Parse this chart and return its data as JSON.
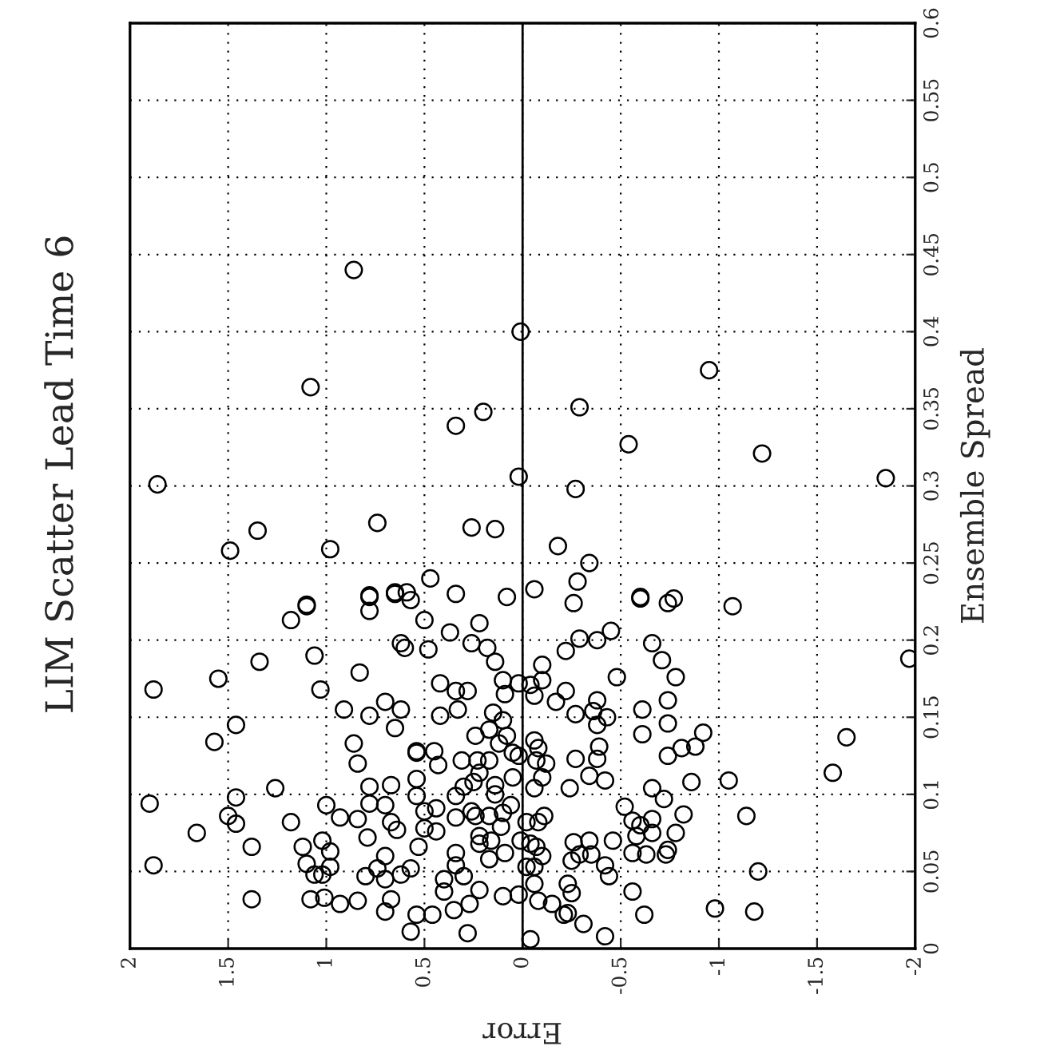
{
  "chart_data": {
    "type": "scatter",
    "title": "LIM Scatter Lead Time 6",
    "xlabel": "Error",
    "ylabel": "Ensemble Spread",
    "xlim": [
      2,
      -2
    ],
    "xticks": [
      2,
      1.5,
      1,
      0.5,
      0,
      -0.5,
      -1,
      -1.5,
      -2
    ],
    "ylim": [
      0,
      0.6
    ],
    "yticks": [
      0,
      0.05,
      0.1,
      0.15,
      0.2,
      0.25,
      0.3,
      0.35,
      0.4,
      0.45,
      0.5,
      0.55,
      0.6
    ],
    "grid": true,
    "marker": "circle",
    "ref_lines": [
      {
        "axis": "x",
        "value": 0,
        "color": "#000000",
        "line_style": "solid"
      }
    ],
    "series": [
      {
        "color": "#000000",
        "x": [
          0.86,
          0.01,
          1.08,
          -0.95,
          -0.29,
          0.2,
          0.34,
          -0.54,
          -1.22,
          1.86,
          0.02,
          -0.27,
          -1.85,
          1.35,
          0.74,
          0.26,
          0.14,
          1.49,
          0.98,
          -0.18,
          -0.34,
          0.47,
          -0.28,
          0.78,
          0.65,
          0.59,
          0.57,
          0.34,
          0.08,
          -0.06,
          -0.26,
          -0.6,
          -0.77,
          -1.07,
          1.1,
          -1.97,
          1.88,
          1.55,
          1.34,
          1.06,
          1.03,
          0.83,
          1.18,
          1.1,
          0.78,
          0.62,
          0.6,
          1.46,
          1.57,
          0.91,
          0.78,
          0.7,
          0.62,
          0.65,
          0.86,
          0.84,
          0.54,
          1.9,
          1.46,
          1.26,
          1.66,
          1.5,
          1.46,
          1.18,
          1.38,
          1.88,
          1.38,
          1.0,
          0.93,
          0.84,
          0.78,
          0.7,
          0.67,
          0.78,
          0.67,
          0.64,
          0.79,
          1.12,
          1.02,
          0.98,
          1.1,
          1.06,
          1.02,
          0.98,
          0.7,
          0.74,
          0.8,
          0.7,
          0.62,
          0.57,
          0.54,
          0.54,
          1.08,
          1.01,
          0.93,
          0.84,
          0.67,
          0.7,
          0.54,
          0.57,
          0.78,
          0.65,
          0.5,
          0.37,
          0.22,
          0.48,
          0.26,
          0.18,
          0.14,
          0.42,
          0.34,
          0.28,
          0.33,
          0.42,
          0.1,
          0.09,
          0.02,
          -0.04,
          -0.1,
          -0.1,
          -0.06,
          -0.22,
          -0.29,
          -0.38,
          -0.45,
          -0.48,
          -0.22,
          -0.17,
          -0.27,
          -0.36,
          -0.38,
          -0.43,
          -0.38,
          -0.39,
          -0.38,
          -0.34,
          -0.42,
          -0.27,
          -0.24,
          -0.06,
          -0.08,
          -0.12,
          -0.07,
          -0.1,
          -0.06,
          0.02,
          0.05,
          0.05,
          0.08,
          0.12,
          0.1,
          0.15,
          0.17,
          0.24,
          0.17,
          0.23,
          0.31,
          0.22,
          0.25,
          0.3,
          0.43,
          0.45,
          0.54,
          0.14,
          0.14,
          0.34,
          0.26,
          0.24,
          0.17,
          0.1,
          0.06,
          0.34,
          0.44,
          0.5,
          0.5,
          0.44,
          0.53,
          0.34,
          0.34,
          0.22,
          0.22,
          0.16,
          0.11,
          0.09,
          0.17,
          0.01,
          -0.02,
          -0.08,
          -0.11,
          -0.04,
          -0.07,
          -0.1,
          -0.02,
          -0.06,
          -0.06,
          -0.08,
          -0.15,
          -0.23,
          -0.25,
          -0.26,
          -0.25,
          -0.29,
          -0.34,
          -0.35,
          -0.42,
          -0.44,
          -0.46,
          -0.21,
          -0.23,
          -0.31,
          -0.42,
          -0.04,
          0.28,
          0.46,
          0.35,
          0.27,
          0.1,
          0.02,
          0.4,
          0.22,
          0.3,
          0.4,
          -0.52,
          -0.56,
          -0.6,
          -0.66,
          -0.66,
          -0.58,
          -0.66,
          -0.72,
          -0.56,
          -0.63,
          -0.73,
          -0.56,
          -0.62,
          -0.61,
          -0.61,
          -0.74,
          -0.74,
          -0.74,
          -0.66,
          -0.71,
          -0.6,
          -0.74,
          -0.78,
          -0.78,
          -0.92,
          -0.88,
          -0.81,
          -0.86,
          -1.05,
          -0.82,
          -1.14,
          -1.2,
          -0.98,
          -1.18,
          -1.65,
          -1.58,
          -0.74
        ],
        "values": [
          0.44,
          0.4,
          0.364,
          0.375,
          0.351,
          0.348,
          0.339,
          0.327,
          0.321,
          0.301,
          0.306,
          0.298,
          0.305,
          0.271,
          0.276,
          0.273,
          0.272,
          0.258,
          0.259,
          0.261,
          0.25,
          0.24,
          0.238,
          0.229,
          0.231,
          0.231,
          0.226,
          0.23,
          0.228,
          0.233,
          0.224,
          0.228,
          0.227,
          0.222,
          0.223,
          0.188,
          0.168,
          0.175,
          0.186,
          0.19,
          0.168,
          0.179,
          0.213,
          0.222,
          0.219,
          0.198,
          0.195,
          0.145,
          0.134,
          0.155,
          0.151,
          0.16,
          0.155,
          0.143,
          0.133,
          0.12,
          0.127,
          0.094,
          0.098,
          0.104,
          0.075,
          0.086,
          0.081,
          0.082,
          0.066,
          0.054,
          0.032,
          0.093,
          0.085,
          0.084,
          0.094,
          0.093,
          0.106,
          0.105,
          0.082,
          0.077,
          0.072,
          0.066,
          0.07,
          0.063,
          0.055,
          0.048,
          0.048,
          0.053,
          0.06,
          0.052,
          0.047,
          0.045,
          0.048,
          0.052,
          0.099,
          0.11,
          0.032,
          0.033,
          0.029,
          0.031,
          0.032,
          0.024,
          0.022,
          0.011,
          0.228,
          0.23,
          0.213,
          0.205,
          0.211,
          0.194,
          0.198,
          0.195,
          0.186,
          0.172,
          0.167,
          0.167,
          0.155,
          0.151,
          0.174,
          0.165,
          0.172,
          0.171,
          0.184,
          0.174,
          0.164,
          0.193,
          0.201,
          0.2,
          0.206,
          0.176,
          0.167,
          0.16,
          0.152,
          0.154,
          0.161,
          0.15,
          0.145,
          0.131,
          0.123,
          0.112,
          0.109,
          0.123,
          0.104,
          0.135,
          0.13,
          0.12,
          0.122,
          0.111,
          0.104,
          0.125,
          0.127,
          0.111,
          0.138,
          0.133,
          0.148,
          0.153,
          0.142,
          0.138,
          0.122,
          0.122,
          0.122,
          0.114,
          0.108,
          0.105,
          0.119,
          0.128,
          0.128,
          0.106,
          0.1,
          0.099,
          0.089,
          0.086,
          0.086,
          0.088,
          0.093,
          0.085,
          0.091,
          0.089,
          0.078,
          0.076,
          0.066,
          0.062,
          0.054,
          0.073,
          0.068,
          0.07,
          0.079,
          0.062,
          0.058,
          0.07,
          0.082,
          0.082,
          0.086,
          0.068,
          0.066,
          0.06,
          0.053,
          0.053,
          0.042,
          0.031,
          0.029,
          0.042,
          0.036,
          0.069,
          0.057,
          0.061,
          0.07,
          0.061,
          0.054,
          0.047,
          0.07,
          0.022,
          0.023,
          0.016,
          0.008,
          0.006,
          0.01,
          0.022,
          0.025,
          0.029,
          0.034,
          0.035,
          0.045,
          0.038,
          0.047,
          0.037,
          0.092,
          0.083,
          0.08,
          0.084,
          0.075,
          0.073,
          0.104,
          0.097,
          0.062,
          0.061,
          0.061,
          0.037,
          0.022,
          0.155,
          0.139,
          0.161,
          0.146,
          0.125,
          0.198,
          0.187,
          0.227,
          0.224,
          0.176,
          0.075,
          0.14,
          0.131,
          0.13,
          0.108,
          0.109,
          0.087,
          0.086,
          0.05,
          0.026,
          0.024,
          0.137,
          0.114,
          0.064
        ]
      }
    ]
  }
}
